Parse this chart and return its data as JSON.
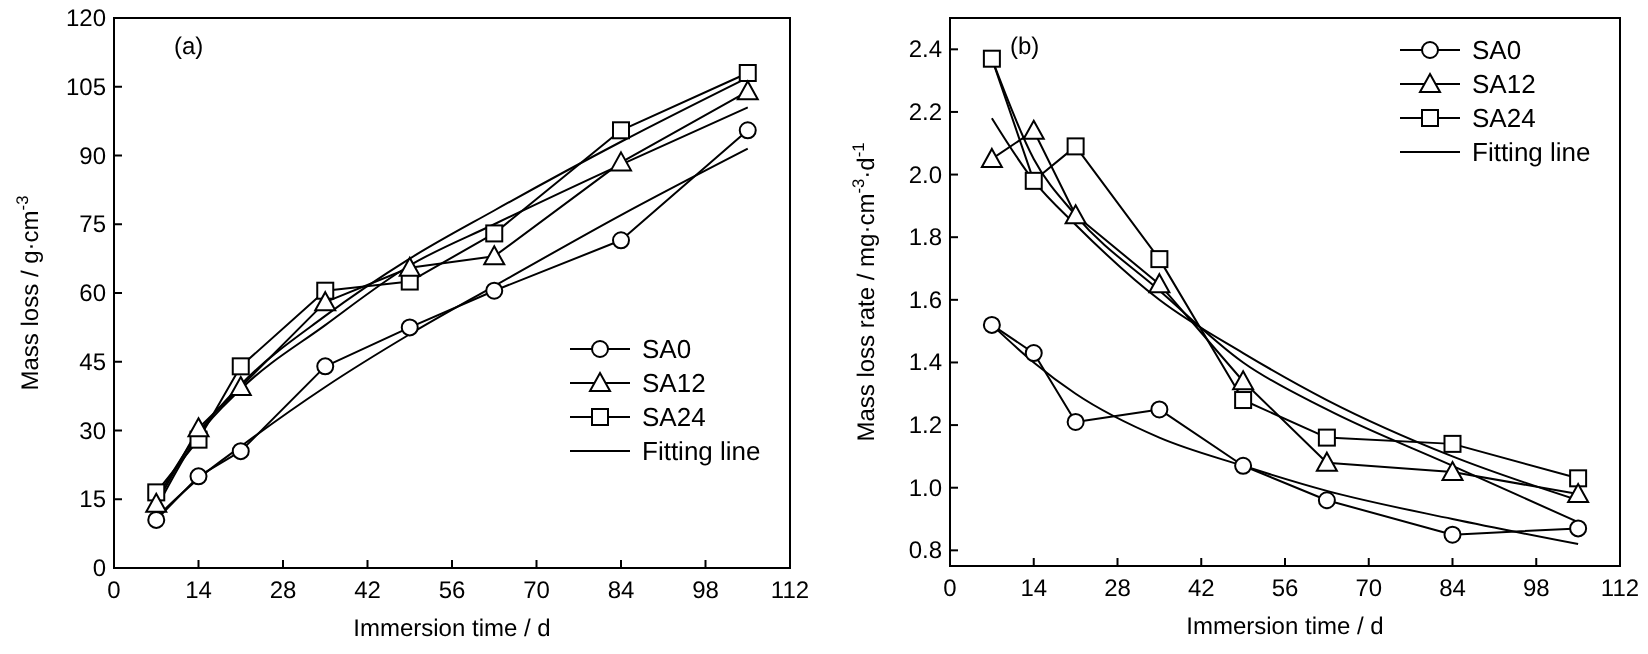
{
  "chart_data": [
    {
      "type": "line",
      "annotations": [
        "(a)"
      ],
      "xlabel": "Immersion time / d",
      "ylabel": "Mass loss  / g·cm$^{-3}$",
      "xlim": [
        0,
        112
      ],
      "xticks": [
        0,
        14,
        28,
        42,
        56,
        70,
        84,
        98,
        112
      ],
      "ylim": [
        0,
        120
      ],
      "yticks": [
        0,
        15,
        30,
        45,
        60,
        75,
        90,
        105,
        120
      ],
      "legend": "right",
      "grid": false,
      "x": [
        7,
        14,
        21,
        35,
        49,
        63,
        84,
        105
      ],
      "series": [
        {
          "name": "SA0",
          "color": "#000000",
          "marker": "circle",
          "values": [
            10.5,
            20,
            25.5,
            44,
            52.5,
            60.5,
            71.5,
            95.5
          ]
        },
        {
          "name": "SA12",
          "color": "#000000",
          "marker": "triangle",
          "values": [
            14,
            30.5,
            39.5,
            58,
            65.5,
            68,
            88.5,
            104
          ]
        },
        {
          "name": "SA24",
          "color": "#000000",
          "marker": "square",
          "values": [
            16.5,
            28,
            44,
            60.5,
            62.5,
            73,
            95.5,
            108
          ]
        },
        {
          "name": "Fitting line",
          "color": "#000000",
          "marker": "none",
          "values": [
            11,
            19.5,
            26.5,
            39.5,
            51,
            61.5,
            77,
            91.5
          ]
        },
        {
          "color": "#000000",
          "marker": "none",
          "values": [
            13,
            29,
            39,
            53,
            66,
            75,
            88,
            100.5
          ]
        },
        {
          "color": "#000000",
          "marker": "none",
          "values": [
            15,
            29.5,
            40,
            55,
            67.5,
            78,
            93,
            107
          ]
        }
      ]
    },
    {
      "type": "line",
      "annotations": [
        "(b)"
      ],
      "xlabel": "Immersion time / d",
      "ylabel": "Mass loss rate / mg·cm$^{-3}$·d$^{-1}$",
      "xlim": [
        0,
        112
      ],
      "xticks": [
        0,
        14,
        28,
        42,
        56,
        70,
        84,
        98,
        112
      ],
      "ylim": [
        0.75,
        2.5
      ],
      "yticks": [
        0.8,
        {
          "value": 1,
          "label": "1.0"
        },
        1.2,
        1.4,
        1.6,
        1.8,
        {
          "value": 2,
          "label": "2.0"
        },
        2.2,
        2.4
      ],
      "legend": "top right",
      "grid": false,
      "x": [
        7,
        14,
        21,
        35,
        49,
        63,
        84,
        105
      ],
      "series": [
        {
          "name": "SA0",
          "color": "#000000",
          "marker": "circle",
          "values": [
            1.52,
            1.43,
            1.21,
            1.25,
            1.07,
            0.96,
            0.85,
            0.87
          ]
        },
        {
          "name": "SA12",
          "color": "#000000",
          "marker": "triangle",
          "values": [
            2.05,
            2.14,
            1.87,
            1.65,
            1.34,
            1.08,
            1.05,
            0.98
          ]
        },
        {
          "name": "SA24",
          "color": "#000000",
          "marker": "square",
          "values": [
            2.37,
            1.98,
            2.09,
            1.73,
            1.28,
            1.16,
            1.14,
            1.03
          ]
        },
        {
          "name": "Fitting line",
          "color": "#000000",
          "marker": "none",
          "values": [
            1.52,
            1.4,
            1.3,
            1.16,
            1.07,
            0.99,
            0.9,
            0.82
          ]
        },
        {
          "color": "#000000",
          "marker": "none",
          "values": [
            2.18,
            1.98,
            1.84,
            1.6,
            1.43,
            1.28,
            1.1,
            0.96
          ]
        },
        {
          "color": "#000000",
          "marker": "none",
          "values": [
            2.37,
            2.05,
            1.87,
            1.63,
            1.4,
            1.25,
            1.07,
            0.89
          ]
        }
      ]
    }
  ]
}
